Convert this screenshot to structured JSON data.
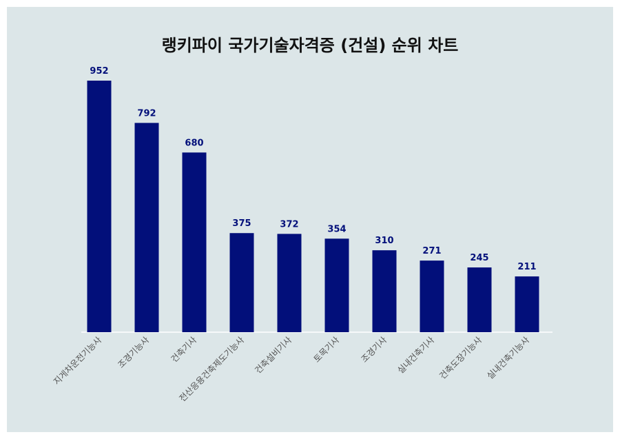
{
  "chart_data": {
    "type": "bar",
    "title": "랭키파이 국가기술자격증 (건설) 순위 차트",
    "categories": [
      "지게차운전기능사",
      "조경기능사",
      "건축기사",
      "전산응용건축제도기능사",
      "건축설비기사",
      "토목기사",
      "조경기사",
      "실내건축기사",
      "건축도장기능사",
      "실내건축기능사"
    ],
    "values": [
      952,
      792,
      680,
      375,
      372,
      354,
      310,
      271,
      245,
      211
    ],
    "xlabel": "",
    "ylabel": "",
    "ylim": [
      0,
      1000
    ],
    "grid": false,
    "bar_color": "#020f7a",
    "label_color": "#020f7a",
    "background": "#dce6e8"
  }
}
